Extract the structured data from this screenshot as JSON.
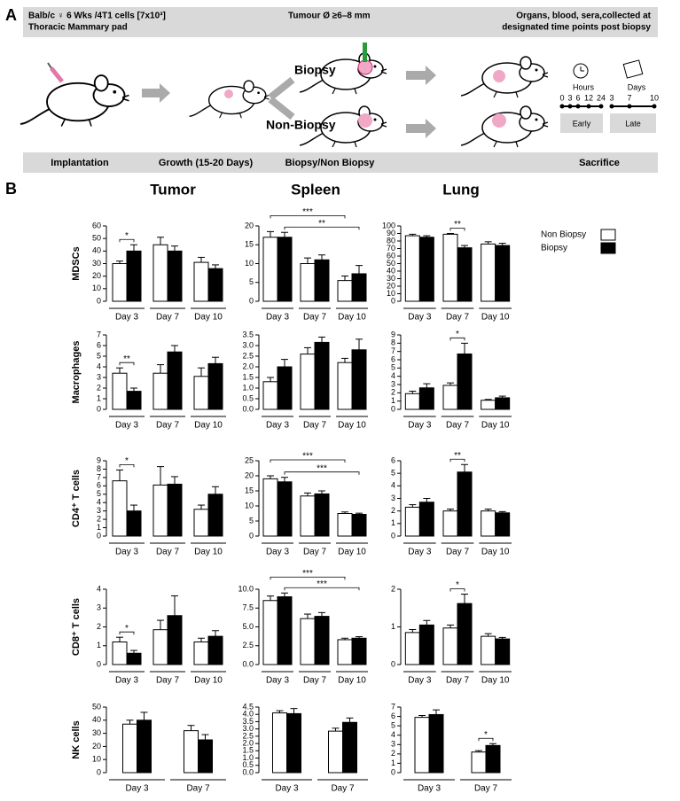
{
  "panel_a": {
    "label": "A",
    "header_left": [
      "Balb/c ♀ 6 Wks /4T1 cells [7x10³]",
      "Thoracic Mammary pad"
    ],
    "header_middle": "Tumour Ø ≥6–8 mm",
    "header_right": [
      "Organs, blood, sera,collected at",
      "designated time points post biopsy"
    ],
    "arms": [
      "Biopsy",
      "Non-Biopsy"
    ],
    "timeline": {
      "hours_title": "Hours",
      "hours": [
        "0",
        "3",
        "6",
        "12",
        "24"
      ],
      "days_title": "Days",
      "days": [
        "3",
        "7",
        "10"
      ],
      "phases": [
        "Early",
        "Late"
      ]
    },
    "stages": [
      "Implantation",
      "Growth (15-20 Days)",
      "Biopsy/Non Biopsy",
      "Sacrifice"
    ]
  },
  "panel_b": {
    "label": "B",
    "columns": [
      "Tumor",
      "Spleen",
      "Lung"
    ]
  },
  "legend": [
    {
      "name": "Non Biopsy",
      "color": "#ffffff"
    },
    {
      "name": "Biopsy",
      "color": "#000000"
    }
  ],
  "chart_data": [
    {
      "type": "bar",
      "ylabel": "MDSCs",
      "categories": [
        "Day 3",
        "Day 7",
        "Day 10"
      ],
      "series": [
        {
          "values": [
            30,
            45,
            31
          ],
          "errors": [
            2,
            6,
            4
          ]
        },
        {
          "values": [
            40,
            40,
            26
          ],
          "errors": [
            5,
            4,
            3
          ]
        }
      ],
      "ylim": [
        0,
        60
      ],
      "yticks": [
        0,
        10,
        20,
        30,
        40,
        50,
        60
      ],
      "annotations": [
        {
          "text": "*",
          "from": [
            "Non Biopsy",
            "Day 3"
          ],
          "to": [
            "Biopsy",
            "Day 3"
          ]
        }
      ]
    },
    {
      "type": "bar",
      "categories": [
        "Day 3",
        "Day 7",
        "Day 10"
      ],
      "series": [
        {
          "values": [
            17,
            10,
            5.5
          ],
          "errors": [
            1.5,
            1.5,
            1.2
          ]
        },
        {
          "values": [
            17,
            11,
            7.3
          ],
          "errors": [
            1.3,
            1.3,
            2.2
          ]
        }
      ],
      "ylim": [
        0,
        20
      ],
      "yticks": [
        0,
        5,
        10,
        15,
        20
      ],
      "annotations": [
        {
          "text": "***",
          "from": [
            "Non Biopsy",
            "Day 3"
          ],
          "to": [
            "Non Biopsy",
            "Day 10"
          ]
        },
        {
          "text": "**",
          "from": [
            "Biopsy",
            "Day 3"
          ],
          "to": [
            "Biopsy",
            "Day 10"
          ]
        }
      ]
    },
    {
      "type": "bar",
      "categories": [
        "Day 3",
        "Day 7",
        "Day 10"
      ],
      "series": [
        {
          "values": [
            87,
            89,
            76
          ],
          "errors": [
            2,
            1,
            3
          ]
        },
        {
          "values": [
            85,
            71,
            74
          ],
          "errors": [
            2,
            3,
            3
          ]
        }
      ],
      "ylim": [
        0,
        100
      ],
      "yticks": [
        0,
        10,
        20,
        30,
        40,
        50,
        60,
        70,
        80,
        90,
        100
      ],
      "annotations": [
        {
          "text": "**",
          "from": [
            "Non Biopsy",
            "Day 7"
          ],
          "to": [
            "Biopsy",
            "Day 7"
          ]
        }
      ]
    },
    {
      "type": "bar",
      "ylabel": "Macrophages",
      "categories": [
        "Day 3",
        "Day 7",
        "Day 10"
      ],
      "series": [
        {
          "values": [
            3.4,
            3.4,
            3.1
          ],
          "errors": [
            0.5,
            0.8,
            0.8
          ]
        },
        {
          "values": [
            1.7,
            5.4,
            4.3
          ],
          "errors": [
            0.3,
            0.6,
            0.6
          ]
        }
      ],
      "ylim": [
        0,
        7
      ],
      "yticks": [
        0,
        1,
        2,
        3,
        4,
        5,
        6,
        7
      ],
      "annotations": [
        {
          "text": "**",
          "from": [
            "Non Biopsy",
            "Day 3"
          ],
          "to": [
            "Biopsy",
            "Day 3"
          ]
        }
      ]
    },
    {
      "type": "bar",
      "categories": [
        "Day 3",
        "Day 7",
        "Day 10"
      ],
      "series": [
        {
          "values": [
            1.3,
            2.6,
            2.2
          ],
          "errors": [
            0.2,
            0.3,
            0.2
          ]
        },
        {
          "values": [
            2.0,
            3.15,
            2.8
          ],
          "errors": [
            0.35,
            0.25,
            0.5
          ]
        }
      ],
      "ylim": [
        0,
        3.5
      ],
      "yticks": [
        {
          "value": 0,
          "label": "0.0"
        },
        0.5,
        {
          "value": 1,
          "label": "1.0"
        },
        1.5,
        {
          "value": 2,
          "label": "2.0"
        },
        2.5,
        {
          "value": 3,
          "label": "3.0"
        },
        3.5
      ],
      "annotations": []
    },
    {
      "type": "bar",
      "categories": [
        "Day 3",
        "Day 7",
        "Day 10"
      ],
      "series": [
        {
          "values": [
            1.9,
            2.9,
            1.1
          ],
          "errors": [
            0.3,
            0.3,
            0.1
          ]
        },
        {
          "values": [
            2.6,
            6.7,
            1.4
          ],
          "errors": [
            0.5,
            1.3,
            0.2
          ]
        }
      ],
      "ylim": [
        0,
        9
      ],
      "yticks": [
        0,
        1,
        2,
        3,
        4,
        5,
        6,
        7,
        8,
        9
      ],
      "annotations": [
        {
          "text": "*",
          "from": [
            "Non Biopsy",
            "Day 7"
          ],
          "to": [
            "Biopsy",
            "Day 7"
          ]
        }
      ]
    },
    {
      "type": "bar",
      "ylabel": "CD4⁺ T cells",
      "categories": [
        "Day 3",
        "Day 7",
        "Day 10"
      ],
      "series": [
        {
          "values": [
            6.6,
            6.1,
            3.2
          ],
          "errors": [
            1.3,
            2.2,
            0.5
          ]
        },
        {
          "values": [
            3.0,
            6.2,
            5.0
          ],
          "errors": [
            0.7,
            0.9,
            0.9
          ]
        }
      ],
      "ylim": [
        0,
        9
      ],
      "yticks": [
        0,
        1,
        2,
        3,
        4,
        5,
        6,
        7,
        8,
        9
      ],
      "annotations": [
        {
          "text": "*",
          "from": [
            "Non Biopsy",
            "Day 3"
          ],
          "to": [
            "Biopsy",
            "Day 3"
          ]
        }
      ]
    },
    {
      "type": "bar",
      "categories": [
        "Day 3",
        "Day 7",
        "Day 10"
      ],
      "series": [
        {
          "values": [
            19,
            13.3,
            7.5
          ],
          "errors": [
            1,
            1,
            0.5
          ]
        },
        {
          "values": [
            18,
            14,
            7.2
          ],
          "errors": [
            1.5,
            1,
            0.4
          ]
        }
      ],
      "ylim": [
        0,
        25
      ],
      "yticks": [
        0,
        5,
        10,
        15,
        20,
        25
      ],
      "annotations": [
        {
          "text": "***",
          "from": [
            "Non Biopsy",
            "Day 3"
          ],
          "to": [
            "Non Biopsy",
            "Day 10"
          ]
        },
        {
          "text": "***",
          "from": [
            "Biopsy",
            "Day 3"
          ],
          "to": [
            "Biopsy",
            "Day 10"
          ]
        }
      ]
    },
    {
      "type": "bar",
      "categories": [
        "Day 3",
        "Day 7",
        "Day 10"
      ],
      "series": [
        {
          "values": [
            2.3,
            2.0,
            2.0
          ],
          "errors": [
            0.2,
            0.15,
            0.15
          ]
        },
        {
          "values": [
            2.7,
            5.1,
            1.85
          ],
          "errors": [
            0.3,
            0.6,
            0.1
          ]
        }
      ],
      "ylim": [
        0,
        6
      ],
      "yticks": [
        0,
        1,
        2,
        3,
        4,
        5,
        6
      ],
      "annotations": [
        {
          "text": "**",
          "from": [
            "Non Biopsy",
            "Day 7"
          ],
          "to": [
            "Biopsy",
            "Day 7"
          ]
        }
      ]
    },
    {
      "type": "bar",
      "ylabel": "CD8⁺ T cells",
      "categories": [
        "Day 3",
        "Day 7",
        "Day 10"
      ],
      "series": [
        {
          "values": [
            1.2,
            1.85,
            1.2
          ],
          "errors": [
            0.25,
            0.5,
            0.2
          ]
        },
        {
          "values": [
            0.6,
            2.6,
            1.5
          ],
          "errors": [
            0.15,
            1.05,
            0.3
          ]
        }
      ],
      "ylim": [
        0,
        4
      ],
      "yticks": [
        0,
        1,
        2,
        3,
        4
      ],
      "annotations": [
        {
          "text": "*",
          "from": [
            "Non Biopsy",
            "Day 3"
          ],
          "to": [
            "Biopsy",
            "Day 3"
          ]
        }
      ]
    },
    {
      "type": "bar",
      "categories": [
        "Day 3",
        "Day 7",
        "Day 10"
      ],
      "series": [
        {
          "values": [
            8.5,
            6.1,
            3.3
          ],
          "errors": [
            0.6,
            0.6,
            0.2
          ]
        },
        {
          "values": [
            9.0,
            6.4,
            3.5
          ],
          "errors": [
            0.5,
            0.5,
            0.2
          ]
        }
      ],
      "ylim": [
        0,
        10
      ],
      "yticks": [
        {
          "value": 0,
          "label": "0.0"
        },
        2.5,
        {
          "value": 5,
          "label": "5.0"
        },
        7.5,
        {
          "value": 10,
          "label": "10.0"
        }
      ],
      "annotations": [
        {
          "text": "***",
          "from": [
            "Non Biopsy",
            "Day 3"
          ],
          "to": [
            "Non Biopsy",
            "Day 10"
          ]
        },
        {
          "text": "***",
          "from": [
            "Biopsy",
            "Day 3"
          ],
          "to": [
            "Biopsy",
            "Day 10"
          ]
        }
      ]
    },
    {
      "type": "bar",
      "categories": [
        "Day 3",
        "Day 7",
        "Day 10"
      ],
      "series": [
        {
          "values": [
            0.85,
            0.97,
            0.75
          ],
          "errors": [
            0.08,
            0.08,
            0.07
          ]
        },
        {
          "values": [
            1.05,
            1.62,
            0.68
          ],
          "errors": [
            0.12,
            0.25,
            0.04
          ]
        }
      ],
      "ylim": [
        0,
        2
      ],
      "yticks": [
        0,
        1,
        2
      ],
      "annotations": [
        {
          "text": "*",
          "from": [
            "Non Biopsy",
            "Day 7"
          ],
          "to": [
            "Biopsy",
            "Day 7"
          ]
        }
      ]
    },
    {
      "type": "bar",
      "ylabel": "NK cells",
      "categories": [
        "Day 3",
        "Day 7"
      ],
      "series": [
        {
          "values": [
            37,
            32
          ],
          "errors": [
            3,
            4
          ]
        },
        {
          "values": [
            40,
            25
          ],
          "errors": [
            6,
            4
          ]
        }
      ],
      "ylim": [
        0,
        50
      ],
      "yticks": [
        0,
        10,
        20,
        30,
        40,
        50
      ],
      "annotations": []
    },
    {
      "type": "bar",
      "categories": [
        "Day 3",
        "Day 7"
      ],
      "series": [
        {
          "values": [
            4.1,
            2.85
          ],
          "errors": [
            0.15,
            0.2
          ]
        },
        {
          "values": [
            4.05,
            3.45
          ],
          "errors": [
            0.35,
            0.3
          ]
        }
      ],
      "ylim": [
        0,
        4.5
      ],
      "yticks": [
        {
          "value": 0,
          "label": "0.0"
        },
        0.5,
        {
          "value": 1,
          "label": "1.0"
        },
        1.5,
        {
          "value": 2,
          "label": "2.0"
        },
        2.5,
        {
          "value": 3,
          "label": "3.0"
        },
        3.5,
        {
          "value": 4,
          "label": "4.0"
        },
        4.5
      ],
      "annotations": []
    },
    {
      "type": "bar",
      "categories": [
        "Day 3",
        "Day 7"
      ],
      "series": [
        {
          "values": [
            5.9,
            2.2
          ],
          "errors": [
            0.2,
            0.15
          ]
        },
        {
          "values": [
            6.2,
            2.9
          ],
          "errors": [
            0.5,
            0.2
          ]
        }
      ],
      "ylim": [
        0,
        7
      ],
      "yticks": [
        0,
        1,
        2,
        3,
        4,
        5,
        6,
        7
      ],
      "annotations": [
        {
          "text": "*",
          "from": [
            "Non Biopsy",
            "Day 7"
          ],
          "to": [
            "Biopsy",
            "Day 7"
          ]
        }
      ]
    }
  ]
}
